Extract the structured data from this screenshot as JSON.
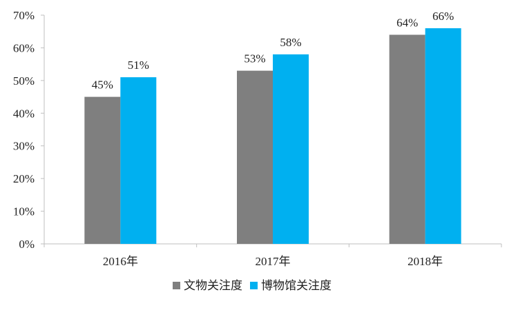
{
  "colors": {
    "series1": "#7f7f7f",
    "series2": "#00b0f0",
    "axis": "#bfbfbf",
    "text": "#222222"
  },
  "chart_data": {
    "type": "bar",
    "categories": [
      "2016年",
      "2017年",
      "2018年"
    ],
    "series": [
      {
        "name": "文物关注度",
        "values": [
          45,
          53,
          64
        ],
        "labels": [
          "45%",
          "53%",
          "64%"
        ]
      },
      {
        "name": "博物馆关注度",
        "values": [
          51,
          58,
          66
        ],
        "labels": [
          "51%",
          "58%",
          "66%"
        ]
      }
    ],
    "yticks": [
      "0%",
      "10%",
      "20%",
      "30%",
      "40%",
      "50%",
      "60%",
      "70%"
    ],
    "ylim": [
      0,
      70
    ],
    "grid": false,
    "legend_position": "bottom"
  }
}
